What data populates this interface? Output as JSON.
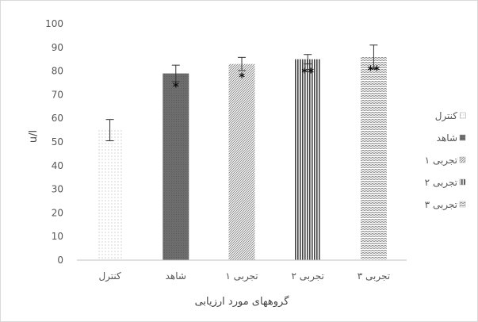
{
  "chart_data": {
    "type": "bar",
    "title": "",
    "xlabel": "گروههای مورد ارزیابی",
    "ylabel": "u/l",
    "ylim": [
      0,
      100
    ],
    "ytick_step": 10,
    "yticks": [
      "0",
      "10",
      "20",
      "30",
      "40",
      "50",
      "60",
      "70",
      "80",
      "90",
      "100"
    ],
    "grid": false,
    "legend_position": "right",
    "categories": [
      "کنترل",
      "شاهد",
      "تجربی ۱",
      "تجربی ۲",
      "تجربی ۳"
    ],
    "values": [
      55,
      79,
      83,
      85,
      86
    ],
    "error_bars": [
      4.5,
      3.5,
      2.8,
      2,
      5
    ],
    "significance_marks": [
      "",
      "*",
      "*",
      "**",
      "**"
    ],
    "patterns": [
      "dots",
      "dark-solid",
      "diagonal",
      "vertical",
      "horizontal"
    ],
    "legend": [
      "کنترل",
      "شاهد",
      "تجربی ۱",
      "تجربی ۲",
      "تجربی ۳"
    ]
  }
}
